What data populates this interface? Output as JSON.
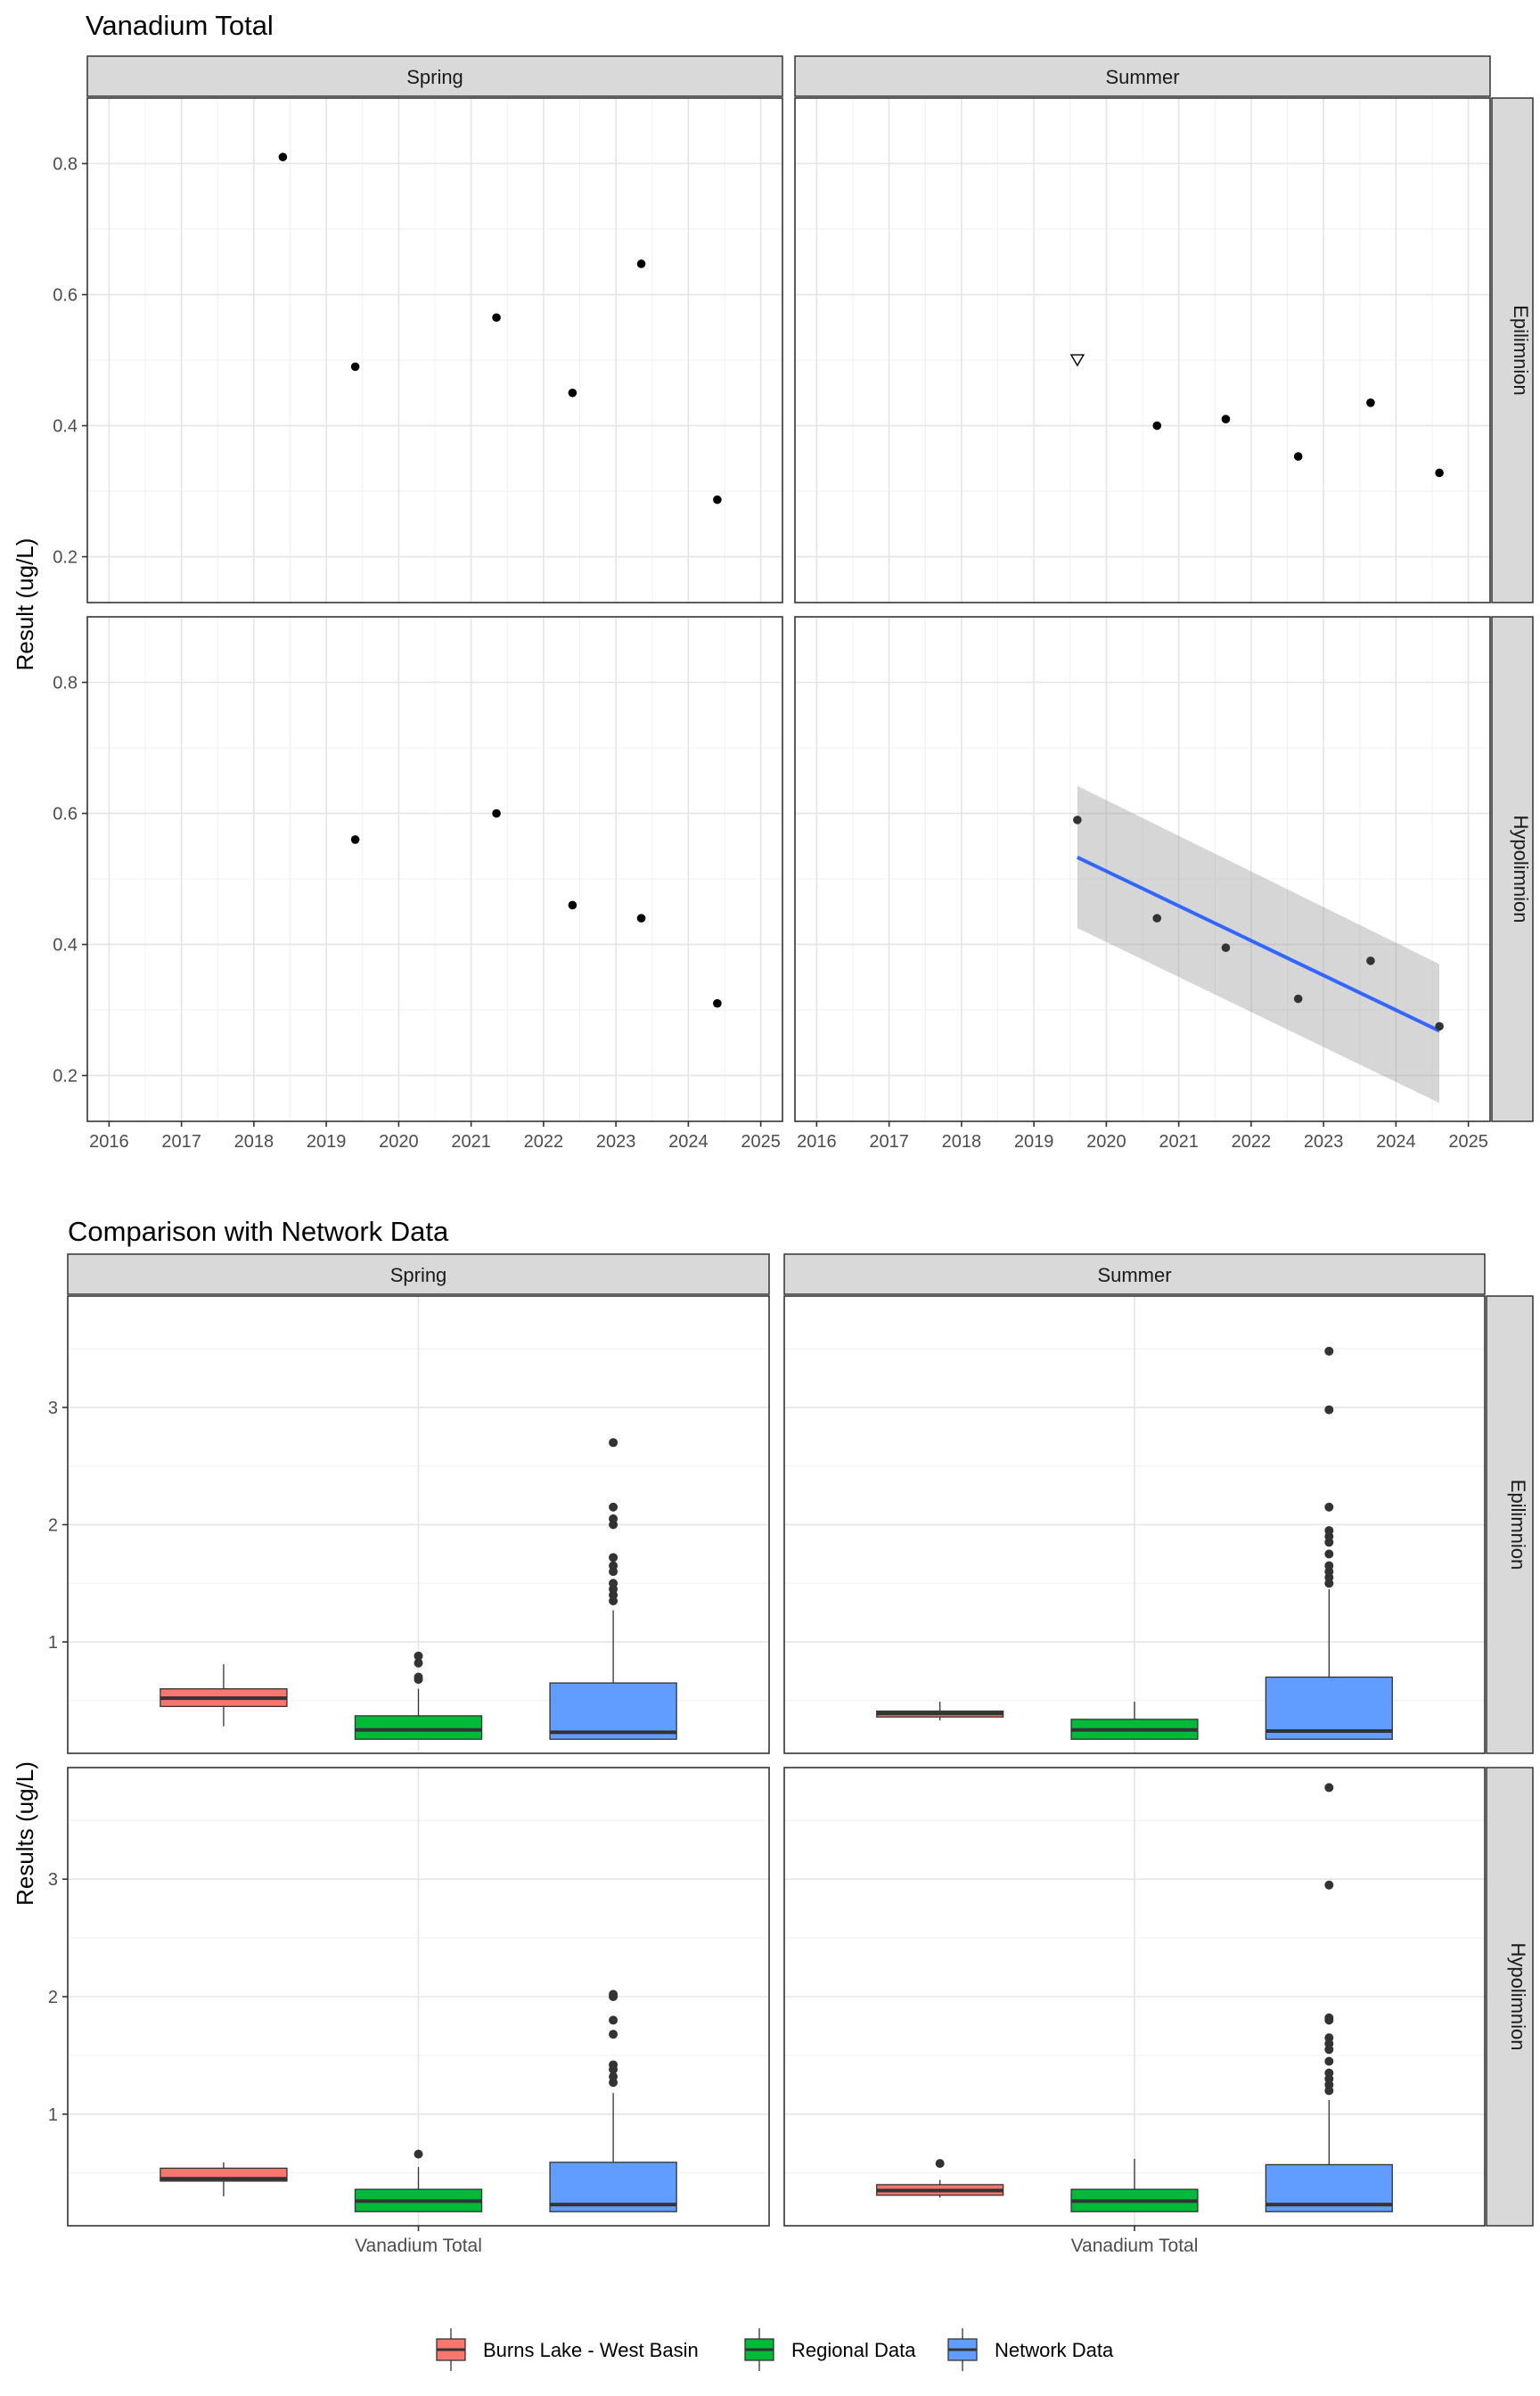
{
  "chart_data": [
    {
      "type": "scatter",
      "title": "Vanadium Total",
      "ylabel": "Result (ug/L)",
      "xlabel": "",
      "xlim": [
        2015.7,
        2025.3
      ],
      "ylim": [
        0.13,
        0.9
      ],
      "x_ticks": [
        "2016",
        "2017",
        "2018",
        "2019",
        "2020",
        "2021",
        "2022",
        "2023",
        "2024",
        "2025"
      ],
      "y_ticks": [
        "0.2",
        "0.4",
        "0.6",
        "0.8"
      ],
      "grid": true,
      "col_facets": [
        "Spring",
        "Summer"
      ],
      "row_facets": [
        "Epilimnion",
        "Hypolimnion"
      ],
      "panels": [
        {
          "season": "Spring",
          "layer": "Epilimnion",
          "points": [
            [
              2018.4,
              0.81
            ],
            [
              2019.4,
              0.49
            ],
            [
              2021.35,
              0.565
            ],
            [
              2022.4,
              0.45
            ],
            [
              2023.35,
              0.647
            ],
            [
              2024.4,
              0.287
            ]
          ],
          "nondetect": []
        },
        {
          "season": "Summer",
          "layer": "Epilimnion",
          "points": [
            [
              2020.7,
              0.4
            ],
            [
              2021.65,
              0.41
            ],
            [
              2022.65,
              0.353
            ],
            [
              2023.65,
              0.435
            ],
            [
              2024.6,
              0.328
            ]
          ],
          "nondetect": [
            [
              2019.6,
              0.5
            ]
          ]
        },
        {
          "season": "Spring",
          "layer": "Hypolimnion",
          "points": [
            [
              2019.4,
              0.56
            ],
            [
              2021.35,
              0.6
            ],
            [
              2022.4,
              0.46
            ],
            [
              2023.35,
              0.44
            ],
            [
              2024.4,
              0.31
            ]
          ],
          "nondetect": []
        },
        {
          "season": "Summer",
          "layer": "Hypolimnion",
          "points": [
            [
              2019.6,
              0.59
            ],
            [
              2020.7,
              0.44
            ],
            [
              2021.65,
              0.395
            ],
            [
              2022.65,
              0.317
            ],
            [
              2023.65,
              0.375
            ],
            [
              2024.6,
              0.275
            ]
          ],
          "nondetect": [],
          "trend": {
            "x": [
              2019.6,
              2024.6
            ],
            "y": [
              0.533,
              0.268
            ],
            "upper": [
              0.642,
              0.37
            ],
            "lower": [
              0.425,
              0.158
            ]
          }
        }
      ]
    },
    {
      "type": "box",
      "title": "Comparison with Network Data",
      "ylabel": "Results (ug/L)",
      "xlabel": "",
      "category": "Vanadium Total",
      "ylim": [
        0.05,
        3.95
      ],
      "y_ticks": [
        "1",
        "2",
        "3"
      ],
      "grid": true,
      "col_facets": [
        "Spring",
        "Summer"
      ],
      "row_facets": [
        "Epilimnion",
        "Hypolimnion"
      ],
      "legend": {
        "position": "bottom",
        "items": [
          "Burns Lake - West Basin",
          "Regional Data",
          "Network Data"
        ]
      },
      "colors": {
        "Burns Lake - West Basin": "#F8766D",
        "Regional Data": "#00BA38",
        "Network Data": "#619CFF"
      },
      "panels": [
        {
          "season": "Spring",
          "layer": "Epilimnion",
          "groups": [
            {
              "name": "Burns Lake - West Basin",
              "whisker_low": 0.28,
              "q1": 0.45,
              "median": 0.52,
              "q3": 0.6,
              "whisker_high": 0.81,
              "outliers": []
            },
            {
              "name": "Regional Data",
              "whisker_low": 0.17,
              "q1": 0.17,
              "median": 0.25,
              "q3": 0.37,
              "whisker_high": 0.6,
              "outliers": [
                0.68,
                0.7,
                0.82,
                0.88
              ]
            },
            {
              "name": "Network Data",
              "whisker_low": 0.17,
              "q1": 0.17,
              "median": 0.23,
              "q3": 0.65,
              "whisker_high": 1.27,
              "outliers": [
                1.35,
                1.4,
                1.45,
                1.5,
                1.6,
                1.65,
                1.72,
                2.0,
                2.05,
                2.15,
                2.7
              ]
            }
          ]
        },
        {
          "season": "Summer",
          "layer": "Epilimnion",
          "groups": [
            {
              "name": "Burns Lake - West Basin",
              "whisker_low": 0.33,
              "q1": 0.36,
              "median": 0.39,
              "q3": 0.41,
              "whisker_high": 0.49,
              "outliers": []
            },
            {
              "name": "Regional Data",
              "whisker_low": 0.17,
              "q1": 0.17,
              "median": 0.25,
              "q3": 0.34,
              "whisker_high": 0.49,
              "outliers": []
            },
            {
              "name": "Network Data",
              "whisker_low": 0.17,
              "q1": 0.17,
              "median": 0.24,
              "q3": 0.7,
              "whisker_high": 1.45,
              "outliers": [
                1.5,
                1.55,
                1.6,
                1.65,
                1.75,
                1.85,
                1.9,
                1.95,
                2.15,
                2.98,
                3.48
              ]
            }
          ]
        },
        {
          "season": "Spring",
          "layer": "Hypolimnion",
          "groups": [
            {
              "name": "Burns Lake - West Basin",
              "whisker_low": 0.3,
              "q1": 0.43,
              "median": 0.45,
              "q3": 0.54,
              "whisker_high": 0.59,
              "outliers": []
            },
            {
              "name": "Regional Data",
              "whisker_low": 0.17,
              "q1": 0.17,
              "median": 0.26,
              "q3": 0.36,
              "whisker_high": 0.55,
              "outliers": [
                0.66
              ]
            },
            {
              "name": "Network Data",
              "whisker_low": 0.17,
              "q1": 0.17,
              "median": 0.23,
              "q3": 0.59,
              "whisker_high": 1.18,
              "outliers": [
                1.27,
                1.32,
                1.38,
                1.42,
                1.68,
                1.8,
                2.0,
                2.02
              ]
            }
          ]
        },
        {
          "season": "Summer",
          "layer": "Hypolimnion",
          "groups": [
            {
              "name": "Burns Lake - West Basin",
              "whisker_low": 0.29,
              "q1": 0.31,
              "median": 0.35,
              "q3": 0.4,
              "whisker_high": 0.44,
              "outliers": [
                0.58
              ]
            },
            {
              "name": "Regional Data",
              "whisker_low": 0.17,
              "q1": 0.17,
              "median": 0.26,
              "q3": 0.36,
              "whisker_high": 0.62,
              "outliers": []
            },
            {
              "name": "Network Data",
              "whisker_low": 0.17,
              "q1": 0.17,
              "median": 0.23,
              "q3": 0.57,
              "whisker_high": 1.12,
              "outliers": [
                1.2,
                1.25,
                1.3,
                1.35,
                1.45,
                1.55,
                1.6,
                1.65,
                1.8,
                1.82,
                2.95,
                3.78
              ]
            }
          ]
        }
      ]
    }
  ]
}
